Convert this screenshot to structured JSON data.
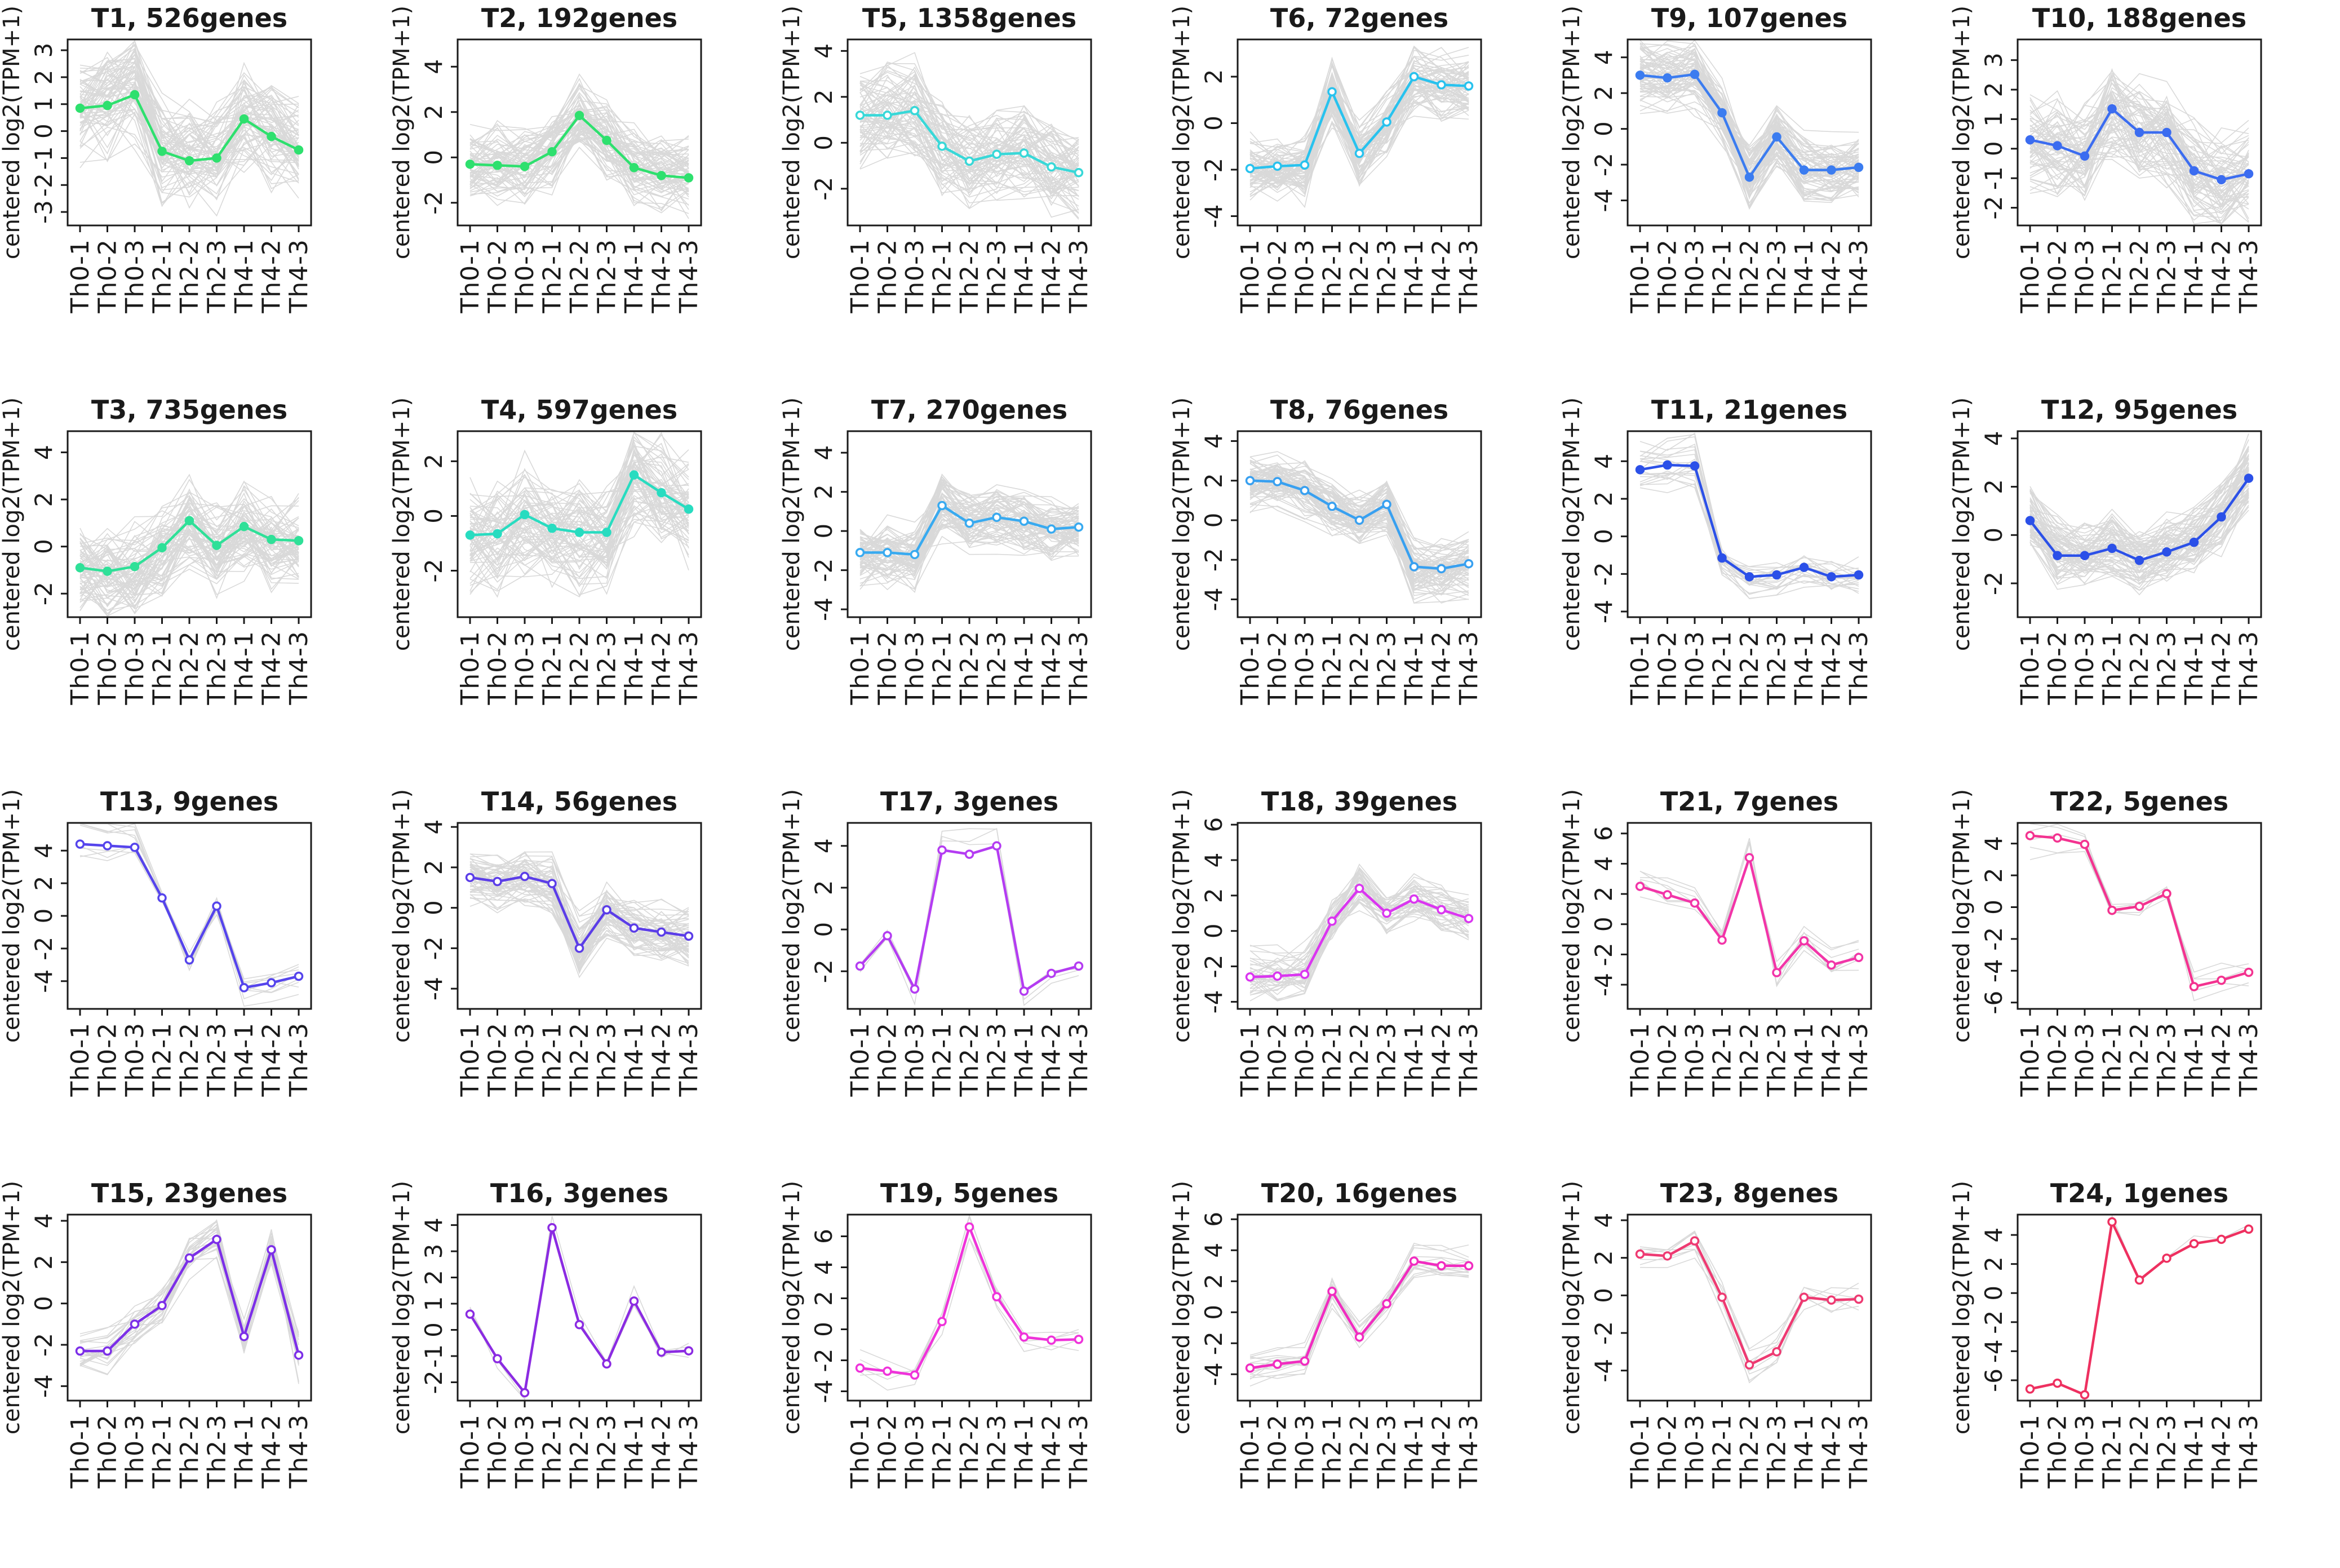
{
  "figure": {
    "description": "Grid of 24 time-course gene expression cluster plots (T1-T24); each panel shows grey per-gene traces and a coloured cluster-mean line across 9 Th samples",
    "trace_color": "#d3d3d3",
    "axis_color": "#1a1a1a"
  },
  "chart_data": {
    "type": "line",
    "ylabel": "centered log2(TPM+1)",
    "categories": [
      "Th0-1",
      "Th0-2",
      "Th0-3",
      "Th2-1",
      "Th2-2",
      "Th2-3",
      "Th4-1",
      "Th4-2",
      "Th4-3"
    ],
    "legend_position": "none",
    "grid_lines": false,
    "panels": [
      {
        "id": "T1",
        "title": "T1, 526genes",
        "genes": 526,
        "color": "#2ee06e",
        "marker": "filled",
        "yticks": [
          -3,
          -2,
          -1,
          0,
          1,
          2,
          3
        ],
        "ylim": [
          -3.5,
          3.4
        ],
        "values": [
          0.85,
          0.95,
          1.35,
          -0.75,
          -1.1,
          -1.0,
          0.45,
          -0.2,
          -0.7
        ]
      },
      {
        "id": "T2",
        "title": "T2, 192genes",
        "genes": 192,
        "color": "#2ee06e",
        "marker": "filled",
        "yticks": [
          -2,
          0,
          2,
          4
        ],
        "ylim": [
          -3.0,
          5.2
        ],
        "values": [
          -0.3,
          -0.35,
          -0.4,
          0.25,
          1.85,
          0.75,
          -0.45,
          -0.8,
          -0.9
        ]
      },
      {
        "id": "T5",
        "title": "T5, 1358genes",
        "genes": 1358,
        "color": "#38d8d8",
        "marker": "open",
        "yticks": [
          -2,
          0,
          2,
          4
        ],
        "ylim": [
          -3.6,
          4.5
        ],
        "values": [
          1.2,
          1.2,
          1.4,
          -0.15,
          -0.8,
          -0.5,
          -0.45,
          -1.05,
          -1.3
        ]
      },
      {
        "id": "T6",
        "title": "T6, 72genes",
        "genes": 72,
        "color": "#28c2ee",
        "marker": "open",
        "yticks": [
          -4,
          -2,
          0,
          2
        ],
        "ylim": [
          -4.4,
          3.6
        ],
        "values": [
          -1.95,
          -1.85,
          -1.8,
          1.35,
          -1.3,
          0.05,
          2.0,
          1.65,
          1.6
        ]
      },
      {
        "id": "T9",
        "title": "T9, 107genes",
        "genes": 107,
        "color": "#3b7cf0",
        "marker": "filled",
        "yticks": [
          -4,
          -2,
          0,
          2,
          4
        ],
        "ylim": [
          -5.4,
          5.0
        ],
        "values": [
          3.0,
          2.85,
          3.05,
          0.9,
          -2.7,
          -0.45,
          -2.3,
          -2.3,
          -2.15
        ]
      },
      {
        "id": "T10",
        "title": "T10, 188genes",
        "genes": 188,
        "color": "#3b6cf0",
        "marker": "filled",
        "yticks": [
          -2,
          -1,
          0,
          1,
          2,
          3
        ],
        "ylim": [
          -2.6,
          3.7
        ],
        "values": [
          0.3,
          0.1,
          -0.25,
          1.35,
          0.55,
          0.55,
          -0.75,
          -1.05,
          -0.85
        ]
      },
      {
        "id": "T3",
        "title": "T3, 735genes",
        "genes": 735,
        "color": "#2fe098",
        "marker": "filled",
        "yticks": [
          -2,
          0,
          2,
          4
        ],
        "ylim": [
          -3.0,
          4.9
        ],
        "values": [
          -0.9,
          -1.05,
          -0.85,
          -0.05,
          1.1,
          0.05,
          0.85,
          0.3,
          0.25
        ]
      },
      {
        "id": "T4",
        "title": "T4, 597genes",
        "genes": 597,
        "color": "#28dcc0",
        "marker": "filled",
        "yticks": [
          -2,
          0,
          2
        ],
        "ylim": [
          -3.7,
          3.1
        ],
        "values": [
          -0.7,
          -0.65,
          0.05,
          -0.45,
          -0.6,
          -0.6,
          1.5,
          0.85,
          0.25
        ]
      },
      {
        "id": "T7",
        "title": "T7, 270genes",
        "genes": 270,
        "color": "#38aaf0",
        "marker": "open",
        "yticks": [
          -4,
          -2,
          0,
          2,
          4
        ],
        "ylim": [
          -4.4,
          5.1
        ],
        "values": [
          -1.1,
          -1.1,
          -1.2,
          1.3,
          0.4,
          0.7,
          0.5,
          0.1,
          0.2
        ]
      },
      {
        "id": "T8",
        "title": "T8, 76genes",
        "genes": 76,
        "color": "#38a0f0",
        "marker": "open",
        "yticks": [
          -4,
          -2,
          0,
          2,
          4
        ],
        "ylim": [
          -4.9,
          4.5
        ],
        "values": [
          2.0,
          1.95,
          1.5,
          0.7,
          0.0,
          0.8,
          -2.35,
          -2.45,
          -2.2
        ]
      },
      {
        "id": "T11",
        "title": "T11, 21genes",
        "genes": 21,
        "color": "#2b50e8",
        "marker": "filled",
        "yticks": [
          -4,
          -2,
          0,
          2,
          4
        ],
        "ylim": [
          -4.3,
          5.6
        ],
        "values": [
          3.55,
          3.8,
          3.75,
          -1.15,
          -2.15,
          -2.05,
          -1.65,
          -2.15,
          -2.05
        ]
      },
      {
        "id": "T12",
        "title": "T12, 95genes",
        "genes": 95,
        "color": "#2b50e8",
        "marker": "filled",
        "yticks": [
          -2,
          0,
          2,
          4
        ],
        "ylim": [
          -3.4,
          4.3
        ],
        "values": [
          0.6,
          -0.85,
          -0.85,
          -0.55,
          -1.05,
          -0.7,
          -0.3,
          0.75,
          2.35
        ]
      },
      {
        "id": "T13",
        "title": "T13, 9genes",
        "genes": 9,
        "color": "#5544ec",
        "marker": "open",
        "yticks": [
          -4,
          -2,
          0,
          2,
          4
        ],
        "ylim": [
          -5.7,
          5.7
        ],
        "values": [
          4.4,
          4.3,
          4.2,
          1.1,
          -2.7,
          0.6,
          -4.4,
          -4.1,
          -3.7
        ]
      },
      {
        "id": "T14",
        "title": "T14, 56genes",
        "genes": 56,
        "color": "#5b3de8",
        "marker": "open",
        "yticks": [
          -4,
          -2,
          0,
          2,
          4
        ],
        "ylim": [
          -5.0,
          4.2
        ],
        "values": [
          1.5,
          1.3,
          1.55,
          1.2,
          -2.0,
          -0.1,
          -1.0,
          -1.2,
          -1.4
        ]
      },
      {
        "id": "T17",
        "title": "T17, 3genes",
        "genes": 3,
        "color": "#b43cf2",
        "marker": "open",
        "yticks": [
          -2,
          0,
          2,
          4
        ],
        "ylim": [
          -3.8,
          5.1
        ],
        "values": [
          -1.75,
          -0.3,
          -2.85,
          3.8,
          3.6,
          4.0,
          -2.95,
          -2.1,
          -1.75
        ]
      },
      {
        "id": "T18",
        "title": "T18, 39genes",
        "genes": 39,
        "color": "#da36f0",
        "marker": "open",
        "yticks": [
          -4,
          -2,
          0,
          2,
          4,
          6
        ],
        "ylim": [
          -4.4,
          6.1
        ],
        "values": [
          -2.6,
          -2.55,
          -2.45,
          0.55,
          2.4,
          1.0,
          1.8,
          1.2,
          0.7
        ]
      },
      {
        "id": "T21",
        "title": "T21, 7genes",
        "genes": 7,
        "color": "#f235a8",
        "marker": "open",
        "yticks": [
          -4,
          -2,
          0,
          2,
          4,
          6
        ],
        "ylim": [
          -5.6,
          6.7
        ],
        "values": [
          2.5,
          1.95,
          1.4,
          -1.05,
          4.4,
          -3.2,
          -1.1,
          -2.7,
          -2.2
        ]
      },
      {
        "id": "T22",
        "title": "T22, 5genes",
        "genes": 5,
        "color": "#f33390",
        "marker": "open",
        "yticks": [
          -6,
          -4,
          -2,
          0,
          2,
          4
        ],
        "ylim": [
          -6.4,
          5.3
        ],
        "values": [
          4.5,
          4.35,
          3.95,
          -0.2,
          0.05,
          0.85,
          -5.0,
          -4.6,
          -4.1
        ]
      },
      {
        "id": "T15",
        "title": "T15, 23genes",
        "genes": 23,
        "color": "#7c2fe8",
        "marker": "open",
        "yticks": [
          -4,
          -2,
          0,
          2,
          4
        ],
        "ylim": [
          -4.7,
          4.3
        ],
        "values": [
          -2.3,
          -2.3,
          -1.0,
          -0.1,
          2.2,
          3.1,
          -1.6,
          2.6,
          -2.5
        ]
      },
      {
        "id": "T16",
        "title": "T16, 3genes",
        "genes": 3,
        "color": "#8b2be2",
        "marker": "open",
        "yticks": [
          -2,
          -1,
          0,
          1,
          2,
          3,
          4
        ],
        "ylim": [
          -2.7,
          4.4
        ],
        "values": [
          0.6,
          -1.1,
          -2.4,
          3.9,
          0.2,
          -1.3,
          1.1,
          -0.85,
          -0.8
        ]
      },
      {
        "id": "T19",
        "title": "T19, 5genes",
        "genes": 5,
        "color": "#ef33da",
        "marker": "open",
        "yticks": [
          -4,
          -2,
          0,
          2,
          4,
          6
        ],
        "ylim": [
          -4.6,
          7.4
        ],
        "values": [
          -2.5,
          -2.7,
          -2.95,
          0.5,
          6.6,
          2.1,
          -0.5,
          -0.7,
          -0.65
        ]
      },
      {
        "id": "T20",
        "title": "T20, 16genes",
        "genes": 16,
        "color": "#f12cc0",
        "marker": "open",
        "yticks": [
          -4,
          -2,
          0,
          2,
          4,
          6
        ],
        "ylim": [
          -5.7,
          6.3
        ],
        "values": [
          -3.6,
          -3.35,
          -3.15,
          1.35,
          -1.6,
          0.55,
          3.3,
          3.0,
          3.0
        ]
      },
      {
        "id": "T23",
        "title": "T23, 8genes",
        "genes": 8,
        "color": "#ee3a72",
        "marker": "open",
        "yticks": [
          -4,
          -2,
          0,
          2,
          4
        ],
        "ylim": [
          -5.6,
          4.3
        ],
        "values": [
          2.2,
          2.1,
          2.9,
          -0.1,
          -3.7,
          -3.0,
          -0.1,
          -0.25,
          -0.2
        ]
      },
      {
        "id": "T24",
        "title": "T24, 1genes",
        "genes": 1,
        "color": "#ee3060",
        "marker": "open",
        "yticks": [
          -6,
          -4,
          -2,
          0,
          2,
          4
        ],
        "ylim": [
          -7.4,
          5.4
        ],
        "values": [
          -6.6,
          -6.2,
          -7.0,
          4.9,
          0.9,
          2.4,
          3.4,
          3.7,
          4.4
        ]
      }
    ]
  }
}
